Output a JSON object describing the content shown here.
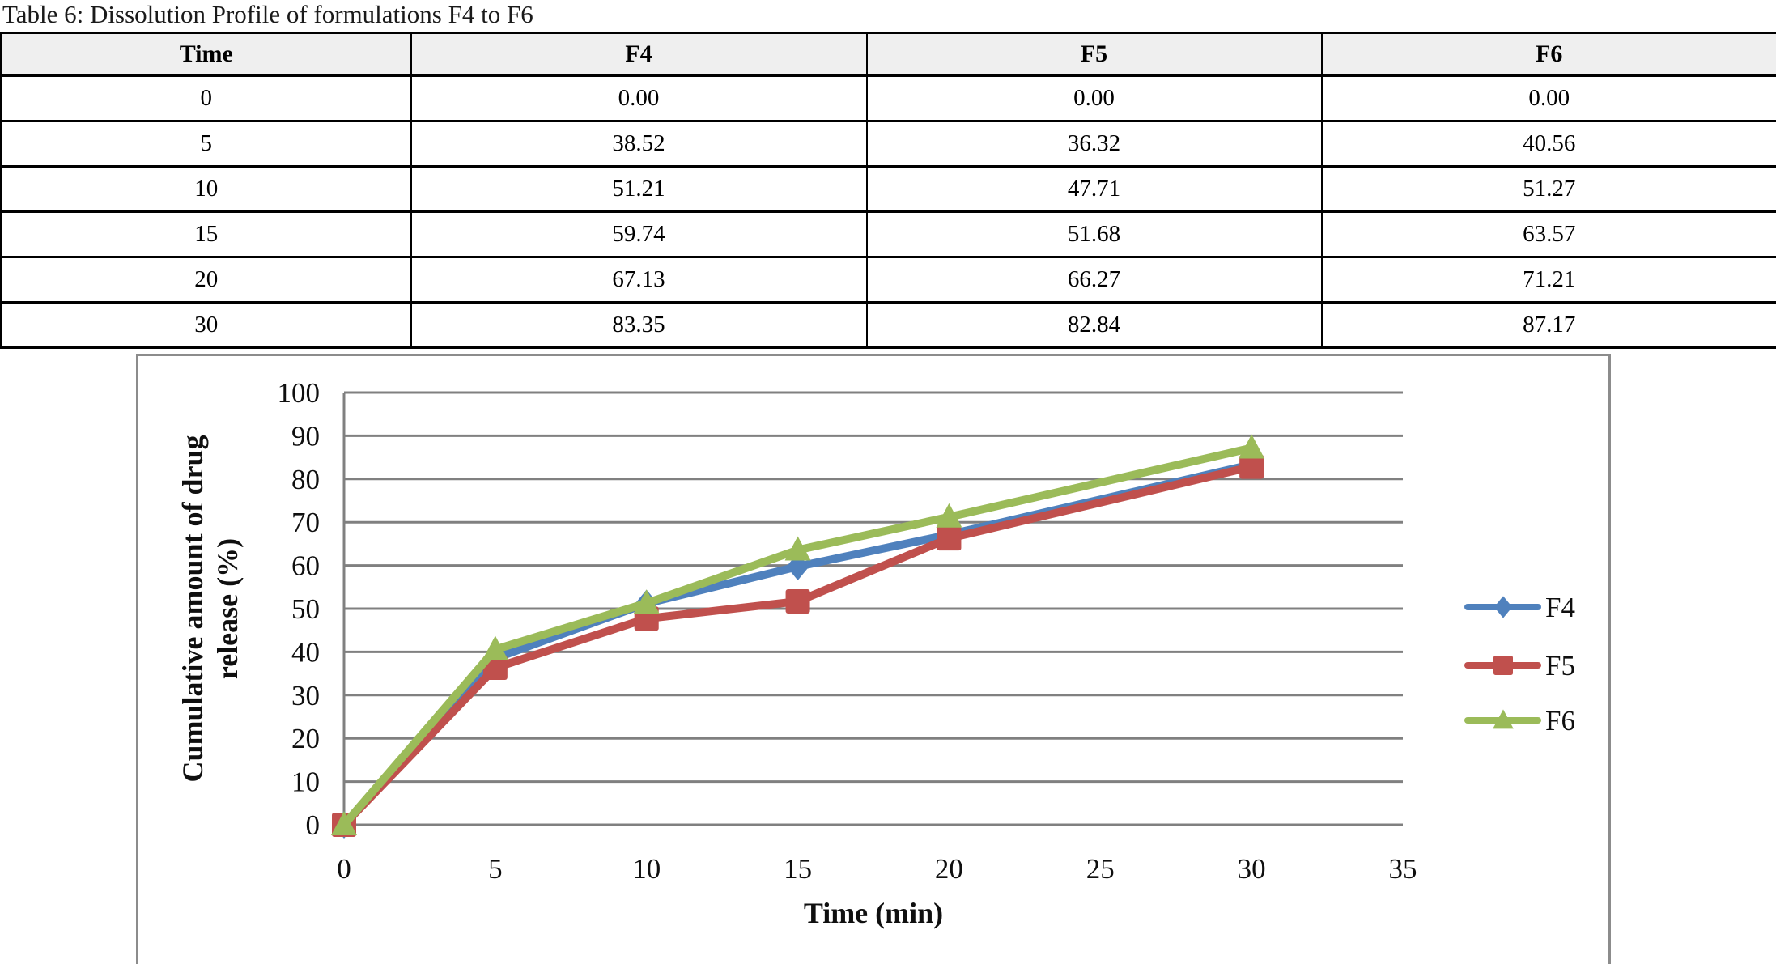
{
  "page": {
    "title": "Table 6: Dissolution Profile of formulations F4 to F6"
  },
  "table": {
    "headers": [
      "Time",
      "F4",
      "F5",
      "F6"
    ],
    "rows": [
      [
        "0",
        "0.00",
        "0.00",
        "0.00"
      ],
      [
        "5",
        "38.52",
        "36.32",
        "40.56"
      ],
      [
        "10",
        "51.21",
        "47.71",
        "51.27"
      ],
      [
        "15",
        "59.74",
        "51.68",
        "63.57"
      ],
      [
        "20",
        "67.13",
        "66.27",
        "71.21"
      ],
      [
        "30",
        "83.35",
        "82.84",
        "87.17"
      ]
    ],
    "header_bg": "#EFEFEF"
  },
  "chart_data": {
    "type": "line",
    "x": [
      0,
      5,
      10,
      15,
      20,
      30
    ],
    "series": [
      {
        "name": "F4",
        "color": "#4F81BD",
        "marker": "diamond",
        "values": [
          0,
          38.52,
          51.21,
          59.74,
          67.13,
          83.35
        ]
      },
      {
        "name": "F5",
        "color": "#C0504D",
        "marker": "square",
        "values": [
          0,
          36.32,
          47.71,
          51.68,
          66.27,
          82.84
        ]
      },
      {
        "name": "F6",
        "color": "#9BBB59",
        "marker": "triangle",
        "values": [
          0,
          40.56,
          51.27,
          63.57,
          71.21,
          87.17
        ]
      }
    ],
    "title": "",
    "xlabel": "Time (min)",
    "ylabel": "Cumulative amount of drug release (%)",
    "ylabel_lines": [
      "Cumulative amount of drug",
      "release (%)"
    ],
    "xlim": [
      0,
      35
    ],
    "ylim": [
      0,
      100
    ],
    "x_ticks": [
      0,
      5,
      10,
      15,
      20,
      25,
      30,
      35
    ],
    "y_ticks": [
      0,
      10,
      20,
      30,
      40,
      50,
      60,
      70,
      80,
      90,
      100
    ],
    "grid": "horizontal",
    "gridline_color": "#808080",
    "frame_color": "#8C8C8C",
    "legend_position": "right"
  }
}
